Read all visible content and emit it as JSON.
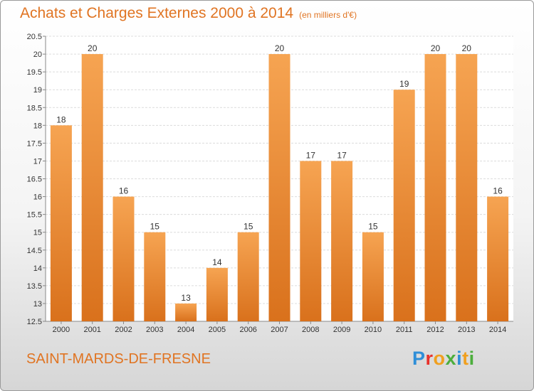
{
  "chart_data": {
    "type": "bar",
    "title": "Achats et Charges Externes 2000 à 2014",
    "unit_label": "(en milliers d'€)",
    "categories": [
      "2000",
      "2001",
      "2002",
      "2003",
      "2004",
      "2005",
      "2006",
      "2007",
      "2008",
      "2009",
      "2010",
      "2011",
      "2012",
      "2013",
      "2014"
    ],
    "values": [
      18,
      20,
      16,
      15,
      13,
      14,
      15,
      20,
      17,
      17,
      15,
      19,
      20,
      20,
      16
    ],
    "ylim": [
      12.5,
      20.5
    ],
    "yticks": [
      "12.5",
      "13",
      "13.5",
      "14",
      "14.5",
      "15",
      "15.5",
      "16",
      "16.5",
      "17",
      "17.5",
      "18",
      "18.5",
      "19",
      "19.5",
      "20",
      "20.5"
    ],
    "grid": true,
    "bar_color_light": "#f6a452",
    "bar_color_dark": "#d9711c"
  },
  "footer": {
    "commune": "SAINT-MARDS-DE-FRESNE",
    "brand_letters": [
      {
        "ch": "P",
        "color": "#2f8fd8"
      },
      {
        "ch": "r",
        "color": "#e8312b"
      },
      {
        "ch": "o",
        "color": "#f0a020"
      },
      {
        "ch": "x",
        "color": "#4cae3c"
      },
      {
        "ch": "i",
        "color": "#2f8fd8"
      },
      {
        "ch": "t",
        "color": "#f0a020"
      },
      {
        "ch": "i",
        "color": "#4cae3c"
      }
    ]
  }
}
